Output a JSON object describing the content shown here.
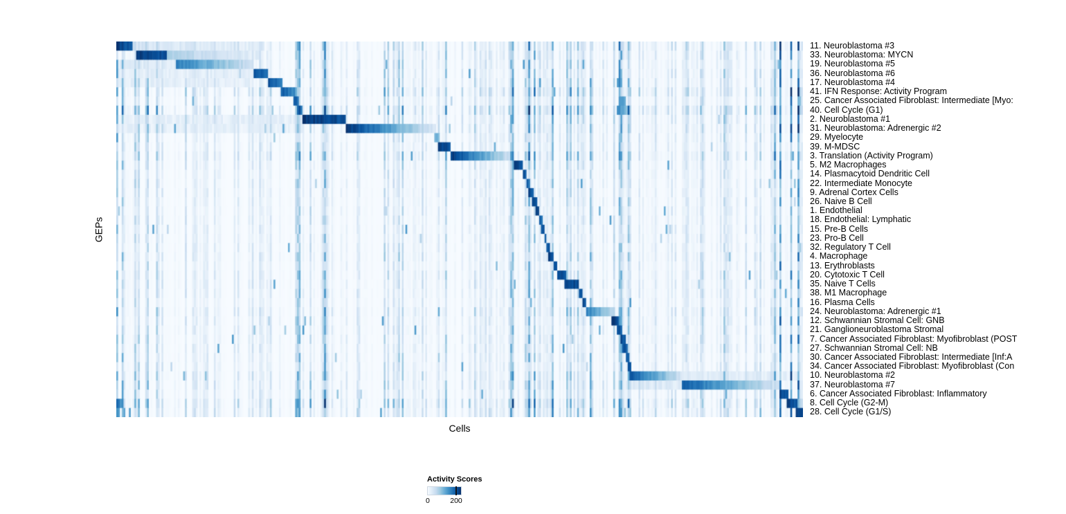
{
  "chart_data": {
    "type": "heatmap",
    "xlabel": "Cells",
    "ylabel": "GEPs",
    "legend": {
      "title": "Activity Scores",
      "min_label": "0",
      "max_label": "200",
      "min": 0,
      "max": 200,
      "tick_fraction": 0.84
    },
    "colormap": {
      "name": "Blues",
      "stops": [
        "#f7fbff",
        "#deebf7",
        "#c6dbef",
        "#9ecae1",
        "#6baed6",
        "#4292c6",
        "#2171b5",
        "#08519c",
        "#08306b"
      ]
    },
    "color_scale_max": 235,
    "n_columns": 380,
    "noisy_column_bands": [
      [
        0.0,
        0.02,
        1.7
      ],
      [
        0.235,
        0.275,
        1.9
      ],
      [
        0.285,
        0.315,
        1.6
      ],
      [
        0.4,
        0.42,
        1.4
      ],
      [
        0.465,
        0.5,
        1.9
      ],
      [
        0.575,
        0.64,
        1.6
      ],
      [
        0.69,
        0.75,
        1.6
      ],
      [
        0.86,
        0.89,
        1.4
      ],
      [
        0.955,
        1.0,
        2.2
      ]
    ],
    "rows": [
      {
        "label": "11. Neuroblastoma #3",
        "noise": 1.2,
        "blocks": [
          [
            0.0,
            0.025,
            225,
            185
          ],
          [
            0.025,
            0.21,
            40,
            18
          ]
        ]
      },
      {
        "label": "33. Neuroblastoma: MYCN",
        "noise": 1.0,
        "blocks": [
          [
            0.028,
            0.075,
            225,
            200
          ],
          [
            0.075,
            0.21,
            75,
            22
          ]
        ]
      },
      {
        "label": "19. Neuroblastoma #5",
        "noise": 1.0,
        "blocks": [
          [
            0.0,
            0.088,
            28,
            28
          ],
          [
            0.088,
            0.2,
            165,
            45
          ]
        ]
      },
      {
        "label": "36. Neuroblastoma #6",
        "noise": 1.0,
        "blocks": [
          [
            0.0,
            0.2,
            22,
            22
          ],
          [
            0.2,
            0.222,
            215,
            170
          ]
        ]
      },
      {
        "label": "17. Neuroblastoma #4",
        "noise": 1.0,
        "blocks": [
          [
            0.0,
            0.2,
            20,
            20
          ],
          [
            0.222,
            0.242,
            205,
            160
          ]
        ]
      },
      {
        "label": "41. IFN Response: Activity Program",
        "noise": 1.5,
        "blocks": [
          [
            0.24,
            0.26,
            195,
            150
          ]
        ]
      },
      {
        "label": "25. Cancer Associated Fibroblast: Intermediate [Myo:",
        "noise": 0.9,
        "blocks": [
          [
            0.258,
            0.266,
            205,
            180
          ],
          [
            0.732,
            0.742,
            150,
            110
          ]
        ]
      },
      {
        "label": "40. Cell Cycle (G1)",
        "noise": 1.7,
        "blocks": [
          [
            0.266,
            0.272,
            185,
            150
          ],
          [
            0.73,
            0.746,
            140,
            95
          ]
        ]
      },
      {
        "label": "2. Neuroblastoma #1",
        "noise": 1.1,
        "blocks": [
          [
            0.0,
            0.27,
            20,
            20
          ],
          [
            0.272,
            0.335,
            228,
            205
          ]
        ]
      },
      {
        "label": "31. Neuroblastoma: Adrenergic #2",
        "noise": 1.1,
        "blocks": [
          [
            0.0,
            0.27,
            18,
            18
          ],
          [
            0.335,
            0.465,
            232,
            32
          ]
        ]
      },
      {
        "label": "29. Myelocyte",
        "noise": 0.9,
        "blocks": [
          [
            0.462,
            0.472,
            130,
            95
          ]
        ]
      },
      {
        "label": "39. M-MDSC",
        "noise": 0.9,
        "blocks": [
          [
            0.468,
            0.487,
            228,
            200
          ]
        ]
      },
      {
        "label": "3. Translation (Activity Program)",
        "noise": 1.3,
        "blocks": [
          [
            0.487,
            0.578,
            225,
            40
          ]
        ]
      },
      {
        "label": "5. M2 Macrophages",
        "noise": 0.9,
        "blocks": [
          [
            0.578,
            0.592,
            228,
            200
          ]
        ]
      },
      {
        "label": "14. Plasmacytoid Dendritic Cell",
        "noise": 0.8,
        "blocks": [
          [
            0.592,
            0.598,
            212,
            180
          ]
        ]
      },
      {
        "label": "22. Intermediate Monocyte",
        "noise": 0.8,
        "blocks": [
          [
            0.597,
            0.603,
            205,
            170
          ]
        ]
      },
      {
        "label": "9. Adrenal Cortex Cells",
        "noise": 0.8,
        "blocks": [
          [
            0.601,
            0.607,
            215,
            190
          ]
        ]
      },
      {
        "label": "26. Naive B Cell",
        "noise": 0.8,
        "blocks": [
          [
            0.606,
            0.612,
            222,
            200
          ]
        ]
      },
      {
        "label": "1. Endothelial",
        "noise": 0.8,
        "blocks": [
          [
            0.611,
            0.616,
            222,
            200
          ]
        ]
      },
      {
        "label": "18. Endothelial: Lymphatic",
        "noise": 0.8,
        "blocks": [
          [
            0.615,
            0.62,
            205,
            180
          ]
        ]
      },
      {
        "label": "15. Pre-B Cells",
        "noise": 0.8,
        "blocks": [
          [
            0.619,
            0.624,
            212,
            190
          ]
        ]
      },
      {
        "label": "23. Pro-B Cell",
        "noise": 0.8,
        "blocks": [
          [
            0.623,
            0.627,
            205,
            180
          ]
        ]
      },
      {
        "label": "32. Regulatory T Cell",
        "noise": 0.8,
        "blocks": [
          [
            0.626,
            0.631,
            212,
            190
          ]
        ]
      },
      {
        "label": "4. Macrophage",
        "noise": 0.9,
        "blocks": [
          [
            0.63,
            0.637,
            222,
            200
          ]
        ]
      },
      {
        "label": "13. Erythroblasts",
        "noise": 0.8,
        "blocks": [
          [
            0.636,
            0.642,
            212,
            190
          ]
        ]
      },
      {
        "label": "20. Cytotoxic T Cell",
        "noise": 0.9,
        "blocks": [
          [
            0.641,
            0.654,
            218,
            195
          ]
        ]
      },
      {
        "label": "35. Naive T Cells",
        "noise": 0.9,
        "blocks": [
          [
            0.653,
            0.674,
            228,
            205
          ]
        ]
      },
      {
        "label": "38. M1 Macrophage",
        "noise": 0.9,
        "blocks": [
          [
            0.673,
            0.679,
            212,
            190
          ]
        ]
      },
      {
        "label": "16. Plasma Cells",
        "noise": 0.8,
        "blocks": [
          [
            0.678,
            0.684,
            218,
            195
          ]
        ]
      },
      {
        "label": "24. Neuroblastoma: Adrenergic #1",
        "noise": 1.1,
        "blocks": [
          [
            0.684,
            0.724,
            165,
            60
          ]
        ]
      },
      {
        "label": "12. Schwannian Stromal Cell: GNB",
        "noise": 0.9,
        "blocks": [
          [
            0.722,
            0.732,
            228,
            205
          ]
        ]
      },
      {
        "label": "21. Ganglioneuroblastoma Stromal",
        "noise": 0.9,
        "blocks": [
          [
            0.728,
            0.737,
            212,
            185
          ]
        ]
      },
      {
        "label": "7. Cancer Associated Fibroblast: Myofibroblast (POST",
        "noise": 0.9,
        "blocks": [
          [
            0.733,
            0.741,
            218,
            190
          ]
        ]
      },
      {
        "label": "27. Schwannian Stromal Cell: NB",
        "noise": 0.9,
        "blocks": [
          [
            0.737,
            0.745,
            212,
            185
          ]
        ]
      },
      {
        "label": "30. Cancer Associated Fibroblast: Intermediate [Inf:A",
        "noise": 0.9,
        "blocks": [
          [
            0.741,
            0.748,
            208,
            182
          ]
        ]
      },
      {
        "label": "34. Cancer Associated Fibroblast: Myofibroblast (Con",
        "noise": 0.9,
        "blocks": [
          [
            0.744,
            0.751,
            212,
            185
          ]
        ]
      },
      {
        "label": "10. Neuroblastoma #2",
        "noise": 1.1,
        "blocks": [
          [
            0.747,
            0.823,
            205,
            45
          ],
          [
            0.823,
            1.0,
            28,
            18
          ]
        ]
      },
      {
        "label": "37. Neuroblastoma #7",
        "noise": 1.1,
        "blocks": [
          [
            0.747,
            0.823,
            35,
            25
          ],
          [
            0.823,
            0.968,
            195,
            40
          ]
        ]
      },
      {
        "label": "6. Cancer Associated Fibroblast: Inflammatory",
        "noise": 1.0,
        "blocks": [
          [
            0.966,
            0.979,
            218,
            195
          ]
        ]
      },
      {
        "label": "8. Cell Cycle (G2-M)",
        "noise": 1.6,
        "blocks": [
          [
            0.0,
            0.008,
            185,
            140
          ],
          [
            0.976,
            0.991,
            222,
            200
          ]
        ]
      },
      {
        "label": "28. Cell Cycle (G1/S)",
        "noise": 1.3,
        "blocks": [
          [
            0.0,
            0.006,
            155,
            120
          ],
          [
            0.989,
            1.0,
            228,
            210
          ]
        ]
      }
    ]
  }
}
